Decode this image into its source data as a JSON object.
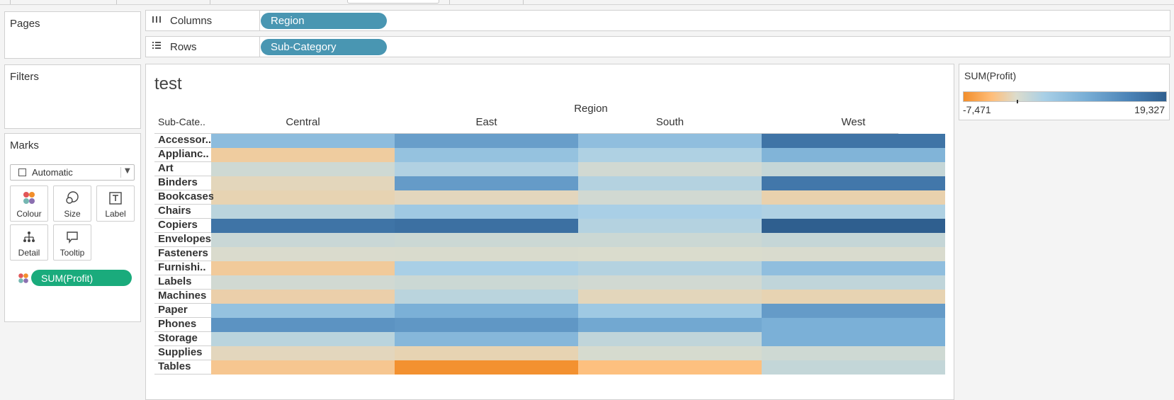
{
  "pages_card": {
    "title": "Pages"
  },
  "filters_card": {
    "title": "Filters"
  },
  "marks_card": {
    "title": "Marks",
    "mark_type": "Automatic",
    "buttons": [
      "Colour",
      "Size",
      "Label",
      "Detail",
      "Tooltip"
    ],
    "colour_field": "SUM(Profit)"
  },
  "shelves": {
    "columns": {
      "label": "Columns",
      "pill": "Region",
      "icon": "columns-icon"
    },
    "rows": {
      "label": "Rows",
      "pill": "Sub-Category",
      "icon": "rows-icon"
    }
  },
  "view": {
    "title": "test",
    "column_field": "Region",
    "row_field": "Sub-Cate.."
  },
  "legend": {
    "title": "SUM(Profit)",
    "min_label": "-7,471",
    "max_label": "19,327"
  },
  "chart_data": {
    "type": "heatmap",
    "title": "test",
    "x_field": "Region",
    "y_field": "Sub-Cate..",
    "columns": [
      "Central",
      "East",
      "South",
      "West"
    ],
    "rows": [
      "Accessor..",
      "Applianc..",
      "Art",
      "Binders",
      "Bookcases",
      "Chairs",
      "Copiers",
      "Envelopes",
      "Fasteners",
      "Furnishi..",
      "Labels",
      "Machines",
      "Paper",
      "Phones",
      "Storage",
      "Supplies",
      "Tables"
    ],
    "color_measure": "SUM(Profit)",
    "color_range": [
      -7471,
      19327
    ],
    "colors": {
      "negative": "#f28e2b",
      "neutral": "#dcdccc",
      "positive": "#2f5f8f"
    },
    "values": [
      [
        7250,
        11200,
        7000,
        16500
      ],
      [
        -2600,
        6500,
        4000,
        8500
      ],
      [
        1200,
        3800,
        1000,
        2000
      ],
      [
        -1000,
        11500,
        3500,
        16000
      ],
      [
        -1500,
        -900,
        1000,
        -1800
      ],
      [
        3000,
        5500,
        4500,
        4000
      ],
      [
        16500,
        17000,
        3500,
        19300
      ],
      [
        1700,
        1500,
        1500,
        2000
      ],
      [
        200,
        250,
        150,
        300
      ],
      [
        -2900,
        4500,
        3500,
        7000
      ],
      [
        1000,
        1500,
        1000,
        2500
      ],
      [
        -2000,
        3000,
        -1000,
        -1500
      ],
      [
        6500,
        9000,
        5500,
        11500
      ],
      [
        12500,
        12000,
        10000,
        9000
      ],
      [
        3000,
        8000,
        2500,
        9000
      ],
      [
        -900,
        -1500,
        500,
        1200
      ],
      [
        -3500,
        -7300,
        -4500,
        2200
      ]
    ]
  }
}
